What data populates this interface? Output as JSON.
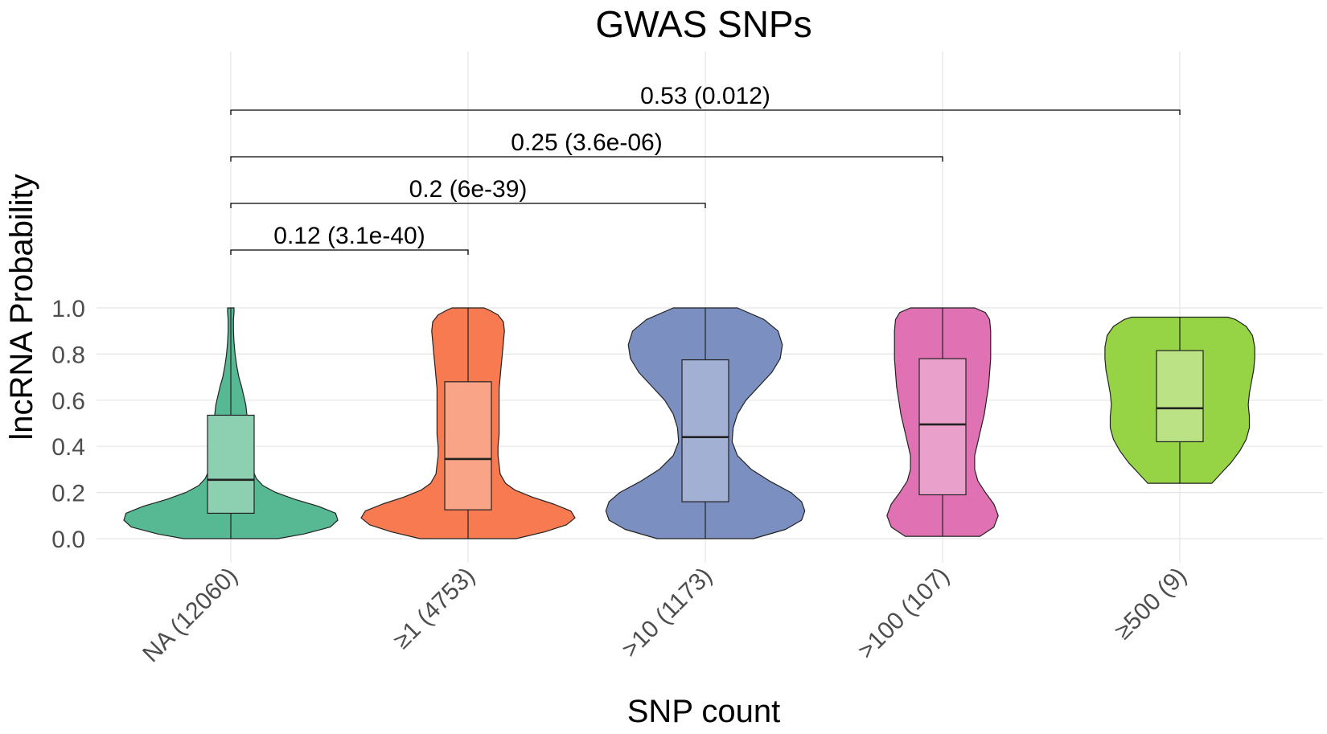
{
  "chart_data": {
    "type": "violin",
    "title": "GWAS SNPs",
    "xlabel": "SNP count",
    "ylabel": "lncRNA Probability",
    "ylim": [
      0,
      1
    ],
    "y_ticks": [
      "0.0",
      "0.2",
      "0.4",
      "0.6",
      "0.8",
      "1.0"
    ],
    "y_tick_values": [
      0,
      0.2,
      0.4,
      0.6,
      0.8,
      1.0
    ],
    "grid": true,
    "legend": "none",
    "categories": [
      "NA (12060)",
      "≥1 (4753)",
      ">10 (1173)",
      ">100 (107)",
      "≥500 (9)"
    ],
    "series": [
      {
        "category": "NA (12060)",
        "color": "#57b994",
        "box_color": "#8ccfb1",
        "violin_min": 0.0,
        "violin_max": 1.0,
        "box": {
          "whisker_low": 0.0,
          "q1": 0.11,
          "median": 0.255,
          "q3": 0.535,
          "whisker_high": 1.0
        },
        "density": [
          [
            0.0,
            0.44
          ],
          [
            0.02,
            0.68
          ],
          [
            0.05,
            0.93
          ],
          [
            0.08,
            1.0
          ],
          [
            0.11,
            0.98
          ],
          [
            0.14,
            0.82
          ],
          [
            0.17,
            0.6
          ],
          [
            0.2,
            0.42
          ],
          [
            0.23,
            0.3
          ],
          [
            0.26,
            0.24
          ],
          [
            0.3,
            0.2
          ],
          [
            0.34,
            0.18
          ],
          [
            0.38,
            0.16
          ],
          [
            0.42,
            0.15
          ],
          [
            0.46,
            0.15
          ],
          [
            0.5,
            0.15
          ],
          [
            0.54,
            0.15
          ],
          [
            0.58,
            0.14
          ],
          [
            0.62,
            0.12
          ],
          [
            0.66,
            0.1
          ],
          [
            0.7,
            0.075
          ],
          [
            0.75,
            0.055
          ],
          [
            0.8,
            0.04
          ],
          [
            0.85,
            0.03
          ],
          [
            0.9,
            0.025
          ],
          [
            0.95,
            0.025
          ],
          [
            0.98,
            0.03
          ],
          [
            1.0,
            0.03
          ]
        ]
      },
      {
        "category": "≥1 (4753)",
        "color": "#f77a50",
        "box_color": "#f9a486",
        "violin_min": 0.0,
        "violin_max": 1.0,
        "box": {
          "whisker_low": 0.0,
          "q1": 0.125,
          "median": 0.345,
          "q3": 0.68,
          "whisker_high": 1.0
        },
        "density": [
          [
            0.0,
            0.45
          ],
          [
            0.03,
            0.72
          ],
          [
            0.06,
            0.92
          ],
          [
            0.09,
            1.0
          ],
          [
            0.12,
            0.96
          ],
          [
            0.15,
            0.8
          ],
          [
            0.18,
            0.6
          ],
          [
            0.21,
            0.44
          ],
          [
            0.24,
            0.35
          ],
          [
            0.28,
            0.3
          ],
          [
            0.32,
            0.29
          ],
          [
            0.36,
            0.28
          ],
          [
            0.4,
            0.28
          ],
          [
            0.45,
            0.29
          ],
          [
            0.5,
            0.29
          ],
          [
            0.55,
            0.29
          ],
          [
            0.6,
            0.29
          ],
          [
            0.65,
            0.29
          ],
          [
            0.7,
            0.3
          ],
          [
            0.75,
            0.31
          ],
          [
            0.8,
            0.32
          ],
          [
            0.85,
            0.33
          ],
          [
            0.9,
            0.34
          ],
          [
            0.94,
            0.33
          ],
          [
            0.97,
            0.28
          ],
          [
            0.99,
            0.2
          ],
          [
            1.0,
            0.15
          ]
        ]
      },
      {
        "category": ">10 (1173)",
        "color": "#7b8fc0",
        "box_color": "#a2b0d4",
        "violin_min": 0.0,
        "violin_max": 1.0,
        "box": {
          "whisker_low": 0.0,
          "q1": 0.16,
          "median": 0.44,
          "q3": 0.775,
          "whisker_high": 1.0
        },
        "density": [
          [
            0.0,
            0.45
          ],
          [
            0.04,
            0.75
          ],
          [
            0.08,
            0.9
          ],
          [
            0.12,
            0.93
          ],
          [
            0.16,
            0.9
          ],
          [
            0.2,
            0.8
          ],
          [
            0.25,
            0.6
          ],
          [
            0.3,
            0.43
          ],
          [
            0.36,
            0.3
          ],
          [
            0.42,
            0.25
          ],
          [
            0.48,
            0.26
          ],
          [
            0.54,
            0.3
          ],
          [
            0.6,
            0.38
          ],
          [
            0.66,
            0.5
          ],
          [
            0.72,
            0.62
          ],
          [
            0.78,
            0.7
          ],
          [
            0.84,
            0.72
          ],
          [
            0.9,
            0.68
          ],
          [
            0.95,
            0.55
          ],
          [
            1.0,
            0.3
          ]
        ]
      },
      {
        "category": ">100 (107)",
        "color": "#e072b4",
        "box_color": "#e9a0cb",
        "violin_min": 0.01,
        "violin_max": 1.0,
        "box": {
          "whisker_low": 0.01,
          "q1": 0.19,
          "median": 0.495,
          "q3": 0.78,
          "whisker_high": 1.0
        },
        "density": [
          [
            0.01,
            0.35
          ],
          [
            0.05,
            0.48
          ],
          [
            0.1,
            0.52
          ],
          [
            0.15,
            0.48
          ],
          [
            0.2,
            0.4
          ],
          [
            0.25,
            0.33
          ],
          [
            0.3,
            0.3
          ],
          [
            0.36,
            0.3
          ],
          [
            0.42,
            0.33
          ],
          [
            0.48,
            0.36
          ],
          [
            0.54,
            0.39
          ],
          [
            0.6,
            0.41
          ],
          [
            0.66,
            0.43
          ],
          [
            0.72,
            0.44
          ],
          [
            0.78,
            0.45
          ],
          [
            0.84,
            0.45
          ],
          [
            0.9,
            0.45
          ],
          [
            0.95,
            0.44
          ],
          [
            0.98,
            0.4
          ],
          [
            1.0,
            0.3
          ]
        ]
      },
      {
        "category": "≥500 (9)",
        "color": "#96d446",
        "box_color": "#bbe285",
        "violin_min": 0.24,
        "violin_max": 0.96,
        "box": {
          "whisker_low": 0.24,
          "q1": 0.42,
          "median": 0.565,
          "q3": 0.815,
          "whisker_high": 0.96
        },
        "density": [
          [
            0.24,
            0.3
          ],
          [
            0.28,
            0.38
          ],
          [
            0.33,
            0.48
          ],
          [
            0.38,
            0.56
          ],
          [
            0.43,
            0.62
          ],
          [
            0.48,
            0.65
          ],
          [
            0.53,
            0.65
          ],
          [
            0.58,
            0.64
          ],
          [
            0.63,
            0.65
          ],
          [
            0.68,
            0.67
          ],
          [
            0.73,
            0.69
          ],
          [
            0.78,
            0.7
          ],
          [
            0.83,
            0.7
          ],
          [
            0.88,
            0.68
          ],
          [
            0.92,
            0.62
          ],
          [
            0.95,
            0.52
          ],
          [
            0.96,
            0.45
          ]
        ]
      }
    ],
    "comparisons": [
      {
        "from": "NA (12060)",
        "to": "≥1 (4753)",
        "label": "0.12 (3.1e-40)"
      },
      {
        "from": "NA (12060)",
        "to": ">10 (1173)",
        "label": "0.2 (6e-39)"
      },
      {
        "from": "NA (12060)",
        "to": ">100 (107)",
        "label": "0.25 (3.6e-06)"
      },
      {
        "from": "NA (12060)",
        "to": "≥500 (9)",
        "label": "0.53 (0.012)"
      }
    ]
  }
}
